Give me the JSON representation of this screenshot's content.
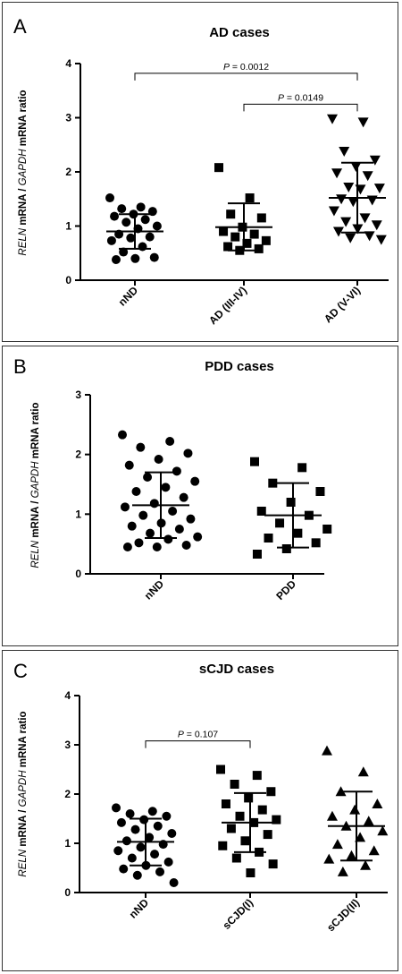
{
  "chart_data": [
    {
      "type": "scatter",
      "panel_label": "A",
      "title": "AD cases",
      "ylabel": {
        "italic1": "RELN",
        "text1": " mRNA / ",
        "italic2": "GAPDH",
        "text2": " mRNA ratio"
      },
      "ylim": [
        0,
        4
      ],
      "yticks": [
        "0",
        "1",
        "2",
        "3",
        "4"
      ],
      "categories": [
        "nND",
        "AD (III-IV)",
        "AD (V-VI)"
      ],
      "markers": [
        "circle",
        "square",
        "triangle-down"
      ],
      "series": [
        {
          "category": "nND",
          "values": [
            1.52,
            1.35,
            1.32,
            1.27,
            1.22,
            1.18,
            1.12,
            1.07,
            1.0,
            0.95,
            0.85,
            0.8,
            0.78,
            0.73,
            0.62,
            0.52,
            0.42,
            0.4,
            0.38
          ],
          "mean": 0.9,
          "sd_upper": 1.22,
          "sd_lower": 0.58
        },
        {
          "category": "AD (III-IV)",
          "values": [
            2.08,
            1.52,
            1.22,
            1.15,
            0.98,
            0.9,
            0.85,
            0.8,
            0.73,
            0.68,
            0.62,
            0.58,
            0.55
          ],
          "mean": 0.98,
          "sd_upper": 1.42,
          "sd_lower": 0.55
        },
        {
          "category": "AD (V-VI)",
          "values": [
            2.98,
            2.92,
            2.38,
            2.22,
            2.1,
            1.98,
            1.93,
            1.72,
            1.7,
            1.68,
            1.5,
            1.48,
            1.45,
            1.28,
            1.15,
            1.08,
            1.02,
            0.95,
            0.9,
            0.82,
            0.78,
            0.75
          ],
          "mean": 1.52,
          "sd_upper": 2.17,
          "sd_lower": 0.88
        }
      ],
      "annotations": [
        {
          "text": "P = 0.0012",
          "from": 0,
          "to": 2,
          "level": 3.82
        },
        {
          "text": "P = 0.0149",
          "from": 1,
          "to": 2,
          "level": 3.25
        }
      ]
    },
    {
      "type": "scatter",
      "panel_label": "B",
      "title": "PDD cases",
      "ylabel": {
        "italic1": "RELN",
        "text1": " mRNA / ",
        "italic2": "GAPDH",
        "text2": " mRNA ratio"
      },
      "ylim": [
        0,
        3
      ],
      "yticks": [
        "0",
        "1",
        "2",
        "3"
      ],
      "categories": [
        "nND",
        "PDD"
      ],
      "markers": [
        "circle",
        "square"
      ],
      "series": [
        {
          "category": "nND",
          "values": [
            2.33,
            2.22,
            2.12,
            2.02,
            1.92,
            1.82,
            1.72,
            1.62,
            1.55,
            1.45,
            1.38,
            1.28,
            1.18,
            1.12,
            1.05,
            0.98,
            0.92,
            0.85,
            0.8,
            0.75,
            0.68,
            0.62,
            0.58,
            0.52,
            0.48,
            0.45,
            0.45
          ],
          "mean": 1.15,
          "sd_upper": 1.7,
          "sd_lower": 0.6
        },
        {
          "category": "PDD",
          "values": [
            1.88,
            1.78,
            1.52,
            1.38,
            1.2,
            1.05,
            0.98,
            0.85,
            0.75,
            0.68,
            0.6,
            0.52,
            0.42,
            0.33
          ],
          "mean": 0.98,
          "sd_upper": 1.52,
          "sd_lower": 0.44
        }
      ],
      "annotations": []
    },
    {
      "type": "scatter",
      "panel_label": "C",
      "title": "sCJD cases",
      "ylabel": {
        "italic1": "RELN",
        "text1": " mRNA / ",
        "italic2": "GAPDH",
        "text2": " mRNA ratio"
      },
      "ylim": [
        0,
        4
      ],
      "yticks": [
        "0",
        "1",
        "2",
        "3",
        "4"
      ],
      "categories": [
        "nND",
        "sCJD(I)",
        "sCJD(II)"
      ],
      "markers": [
        "circle",
        "square",
        "triangle-up"
      ],
      "series": [
        {
          "category": "nND",
          "values": [
            1.72,
            1.65,
            1.6,
            1.55,
            1.48,
            1.42,
            1.35,
            1.28,
            1.2,
            1.12,
            1.05,
            0.98,
            0.92,
            0.85,
            0.78,
            0.7,
            0.62,
            0.55,
            0.48,
            0.42,
            0.35,
            0.2
          ],
          "mean": 1.03,
          "sd_upper": 1.5,
          "sd_lower": 0.55
        },
        {
          "category": "sCJD(I)",
          "values": [
            2.5,
            2.38,
            2.2,
            2.05,
            1.92,
            1.8,
            1.68,
            1.55,
            1.48,
            1.42,
            1.3,
            1.18,
            1.05,
            0.95,
            0.82,
            0.7,
            0.58,
            0.4
          ],
          "mean": 1.42,
          "sd_upper": 2.02,
          "sd_lower": 0.82
        },
        {
          "category": "sCJD(II)",
          "values": [
            2.88,
            2.45,
            2.05,
            1.8,
            1.68,
            1.55,
            1.45,
            1.35,
            1.25,
            1.12,
            0.98,
            0.85,
            0.75,
            0.68,
            0.55,
            0.42
          ],
          "mean": 1.35,
          "sd_upper": 2.05,
          "sd_lower": 0.65
        }
      ],
      "annotations": [
        {
          "text": "P = 0.107",
          "from": 0,
          "to": 1,
          "level": 3.08
        }
      ]
    }
  ]
}
